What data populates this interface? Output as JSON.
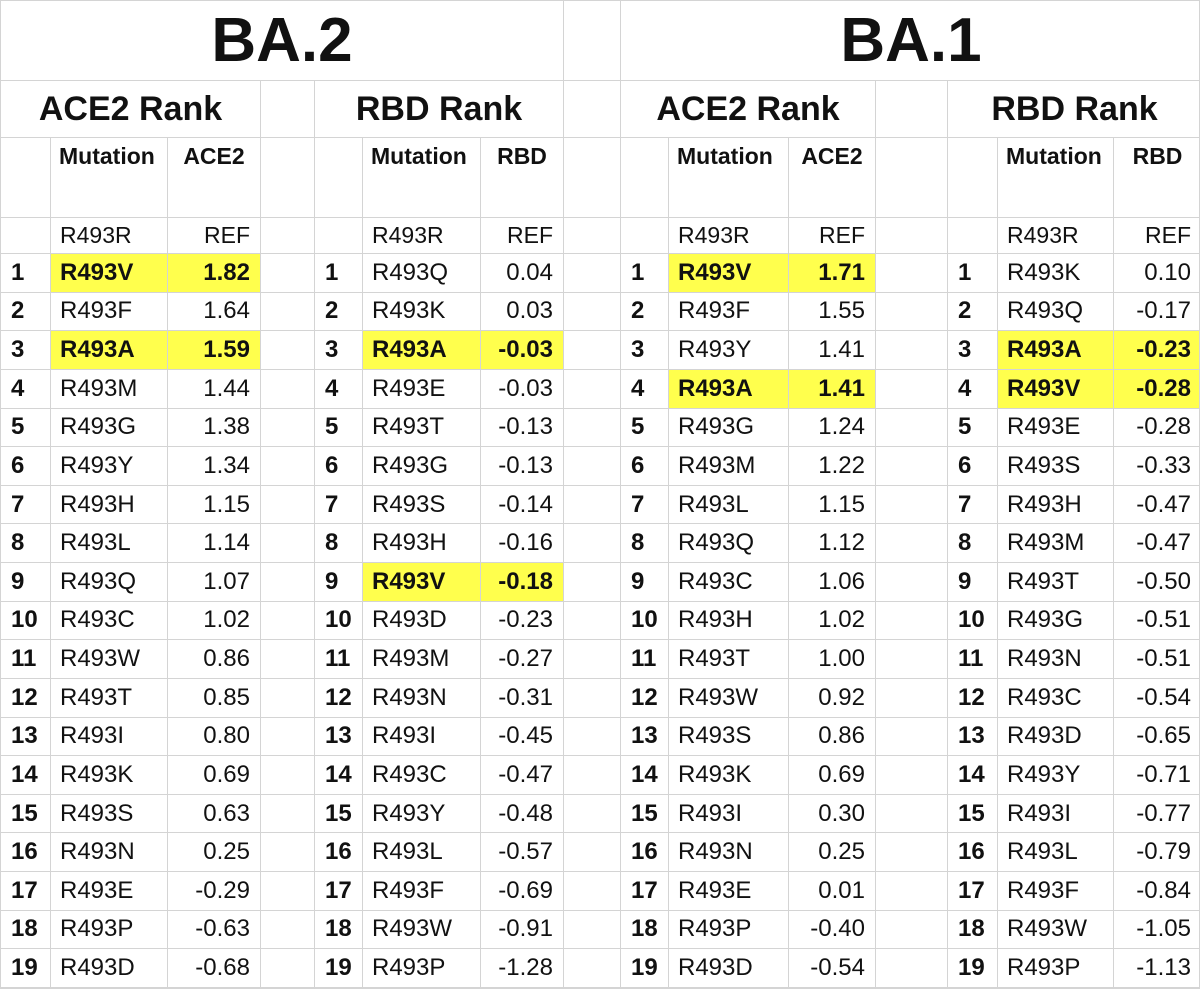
{
  "colors": {
    "highlight": "#ffff4d",
    "gridline": "#d4d4d4",
    "text": "#111111",
    "background": "#ffffff"
  },
  "variants": [
    {
      "label": "BA.2"
    },
    {
      "label": "BA.1"
    }
  ],
  "chart_data": [
    {
      "type": "table",
      "variant": "BA.2",
      "title": "ACE2 Rank",
      "headers": {
        "rank": "",
        "mutation": "Mutation",
        "value": "ACE2"
      },
      "ref": {
        "mutation": "R493R",
        "value": "REF"
      },
      "rows": [
        {
          "rank": "1",
          "mutation": "R493V",
          "value": "1.82",
          "highlight": true
        },
        {
          "rank": "2",
          "mutation": "R493F",
          "value": "1.64"
        },
        {
          "rank": "3",
          "mutation": "R493A",
          "value": "1.59",
          "highlight": true
        },
        {
          "rank": "4",
          "mutation": "R493M",
          "value": "1.44"
        },
        {
          "rank": "5",
          "mutation": "R493G",
          "value": "1.38"
        },
        {
          "rank": "6",
          "mutation": "R493Y",
          "value": "1.34"
        },
        {
          "rank": "7",
          "mutation": "R493H",
          "value": "1.15"
        },
        {
          "rank": "8",
          "mutation": "R493L",
          "value": "1.14"
        },
        {
          "rank": "9",
          "mutation": "R493Q",
          "value": "1.07"
        },
        {
          "rank": "10",
          "mutation": "R493C",
          "value": "1.02"
        },
        {
          "rank": "11",
          "mutation": "R493W",
          "value": "0.86"
        },
        {
          "rank": "12",
          "mutation": "R493T",
          "value": "0.85"
        },
        {
          "rank": "13",
          "mutation": "R493I",
          "value": "0.80"
        },
        {
          "rank": "14",
          "mutation": "R493K",
          "value": "0.69"
        },
        {
          "rank": "15",
          "mutation": "R493S",
          "value": "0.63"
        },
        {
          "rank": "16",
          "mutation": "R493N",
          "value": "0.25"
        },
        {
          "rank": "17",
          "mutation": "R493E",
          "value": "-0.29"
        },
        {
          "rank": "18",
          "mutation": "R493P",
          "value": "-0.63"
        },
        {
          "rank": "19",
          "mutation": "R493D",
          "value": "-0.68"
        }
      ]
    },
    {
      "type": "table",
      "variant": "BA.2",
      "title": "RBD Rank",
      "headers": {
        "rank": "",
        "mutation": "Mutation",
        "value": "RBD"
      },
      "ref": {
        "mutation": "R493R",
        "value": "REF"
      },
      "rows": [
        {
          "rank": "1",
          "mutation": "R493Q",
          "value": "0.04"
        },
        {
          "rank": "2",
          "mutation": "R493K",
          "value": "0.03"
        },
        {
          "rank": "3",
          "mutation": "R493A",
          "value": "-0.03",
          "highlight": true
        },
        {
          "rank": "4",
          "mutation": "R493E",
          "value": "-0.03"
        },
        {
          "rank": "5",
          "mutation": "R493T",
          "value": "-0.13"
        },
        {
          "rank": "6",
          "mutation": "R493G",
          "value": "-0.13"
        },
        {
          "rank": "7",
          "mutation": "R493S",
          "value": "-0.14"
        },
        {
          "rank": "8",
          "mutation": "R493H",
          "value": "-0.16"
        },
        {
          "rank": "9",
          "mutation": "R493V",
          "value": "-0.18",
          "highlight": true
        },
        {
          "rank": "10",
          "mutation": "R493D",
          "value": "-0.23"
        },
        {
          "rank": "11",
          "mutation": "R493M",
          "value": "-0.27"
        },
        {
          "rank": "12",
          "mutation": "R493N",
          "value": "-0.31"
        },
        {
          "rank": "13",
          "mutation": "R493I",
          "value": "-0.45"
        },
        {
          "rank": "14",
          "mutation": "R493C",
          "value": "-0.47"
        },
        {
          "rank": "15",
          "mutation": "R493Y",
          "value": "-0.48"
        },
        {
          "rank": "16",
          "mutation": "R493L",
          "value": "-0.57"
        },
        {
          "rank": "17",
          "mutation": "R493F",
          "value": "-0.69"
        },
        {
          "rank": "18",
          "mutation": "R493W",
          "value": "-0.91"
        },
        {
          "rank": "19",
          "mutation": "R493P",
          "value": "-1.28"
        }
      ]
    },
    {
      "type": "table",
      "variant": "BA.1",
      "title": "ACE2 Rank",
      "headers": {
        "rank": "",
        "mutation": "Mutation",
        "value": "ACE2"
      },
      "ref": {
        "mutation": "R493R",
        "value": "REF"
      },
      "rows": [
        {
          "rank": "1",
          "mutation": "R493V",
          "value": "1.71",
          "highlight": true
        },
        {
          "rank": "2",
          "mutation": "R493F",
          "value": "1.55"
        },
        {
          "rank": "3",
          "mutation": "R493Y",
          "value": "1.41"
        },
        {
          "rank": "4",
          "mutation": "R493A",
          "value": "1.41",
          "highlight": true
        },
        {
          "rank": "5",
          "mutation": "R493G",
          "value": "1.24"
        },
        {
          "rank": "6",
          "mutation": "R493M",
          "value": "1.22"
        },
        {
          "rank": "7",
          "mutation": "R493L",
          "value": "1.15"
        },
        {
          "rank": "8",
          "mutation": "R493Q",
          "value": "1.12"
        },
        {
          "rank": "9",
          "mutation": "R493C",
          "value": "1.06"
        },
        {
          "rank": "10",
          "mutation": "R493H",
          "value": "1.02"
        },
        {
          "rank": "11",
          "mutation": "R493T",
          "value": "1.00"
        },
        {
          "rank": "12",
          "mutation": "R493W",
          "value": "0.92"
        },
        {
          "rank": "13",
          "mutation": "R493S",
          "value": "0.86"
        },
        {
          "rank": "14",
          "mutation": "R493K",
          "value": "0.69"
        },
        {
          "rank": "15",
          "mutation": "R493I",
          "value": "0.30"
        },
        {
          "rank": "16",
          "mutation": "R493N",
          "value": "0.25"
        },
        {
          "rank": "17",
          "mutation": "R493E",
          "value": "0.01"
        },
        {
          "rank": "18",
          "mutation": "R493P",
          "value": "-0.40"
        },
        {
          "rank": "19",
          "mutation": "R493D",
          "value": "-0.54"
        }
      ]
    },
    {
      "type": "table",
      "variant": "BA.1",
      "title": "RBD Rank",
      "headers": {
        "rank": "",
        "mutation": "Mutation",
        "value": "RBD"
      },
      "ref": {
        "mutation": "R493R",
        "value": "REF"
      },
      "rows": [
        {
          "rank": "1",
          "mutation": "R493K",
          "value": "0.10"
        },
        {
          "rank": "2",
          "mutation": "R493Q",
          "value": "-0.17"
        },
        {
          "rank": "3",
          "mutation": "R493A",
          "value": "-0.23",
          "highlight": true
        },
        {
          "rank": "4",
          "mutation": "R493V",
          "value": "-0.28",
          "highlight": true
        },
        {
          "rank": "5",
          "mutation": "R493E",
          "value": "-0.28"
        },
        {
          "rank": "6",
          "mutation": "R493S",
          "value": "-0.33"
        },
        {
          "rank": "7",
          "mutation": "R493H",
          "value": "-0.47"
        },
        {
          "rank": "8",
          "mutation": "R493M",
          "value": "-0.47"
        },
        {
          "rank": "9",
          "mutation": "R493T",
          "value": "-0.50"
        },
        {
          "rank": "10",
          "mutation": "R493G",
          "value": "-0.51"
        },
        {
          "rank": "11",
          "mutation": "R493N",
          "value": "-0.51"
        },
        {
          "rank": "12",
          "mutation": "R493C",
          "value": "-0.54"
        },
        {
          "rank": "13",
          "mutation": "R493D",
          "value": "-0.65"
        },
        {
          "rank": "14",
          "mutation": "R493Y",
          "value": "-0.71"
        },
        {
          "rank": "15",
          "mutation": "R493I",
          "value": "-0.77"
        },
        {
          "rank": "16",
          "mutation": "R493L",
          "value": "-0.79"
        },
        {
          "rank": "17",
          "mutation": "R493F",
          "value": "-0.84"
        },
        {
          "rank": "18",
          "mutation": "R493W",
          "value": "-1.05"
        },
        {
          "rank": "19",
          "mutation": "R493P",
          "value": "-1.13"
        }
      ]
    }
  ]
}
